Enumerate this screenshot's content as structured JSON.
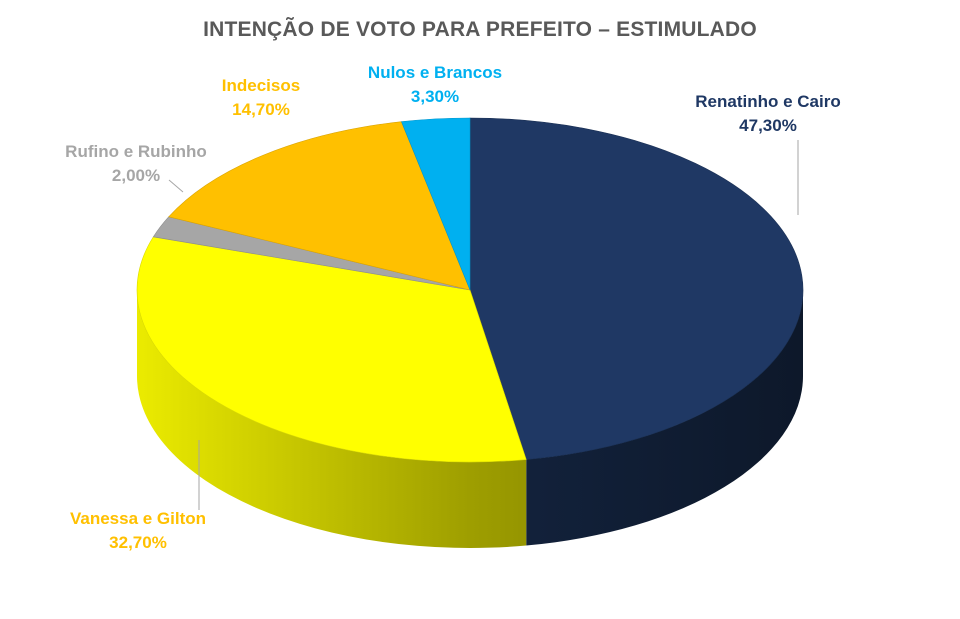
{
  "chart_data": {
    "type": "pie",
    "title": "INTENÇÃO DE VOTO PARA PREFEITO – ESTIMULADO",
    "three_d": true,
    "legend": "none",
    "slices": [
      {
        "label": "Renatinho e Cairo",
        "value": 47.3,
        "display": "47,30%",
        "color": "#1F3864"
      },
      {
        "label": "Vanessa e Gilton",
        "value": 32.7,
        "display": "32,70%",
        "color": "#FFFF00"
      },
      {
        "label": "Rufino e Rubinho",
        "value": 2.0,
        "display": "2,00%",
        "color": "#A6A6A6"
      },
      {
        "label": "Indecisos",
        "value": 14.7,
        "display": "14,70%",
        "color": "#FFC000"
      },
      {
        "label": "Nulos e Brancos",
        "value": 3.3,
        "display": "3,30%",
        "color": "#00B0F0"
      }
    ],
    "label_colors": [
      "#1F3864",
      "#FFC000",
      "#A6A6A6",
      "#FFC000",
      "#00B0F0"
    ]
  }
}
